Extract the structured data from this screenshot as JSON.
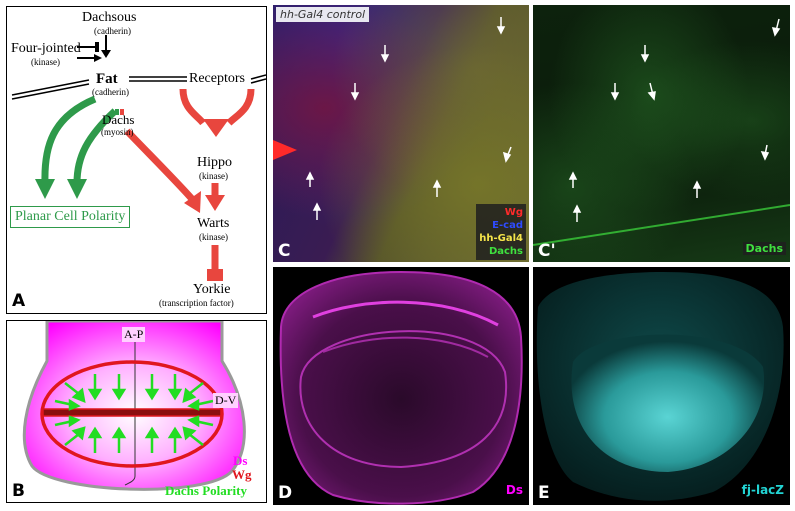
{
  "panelA": {
    "label": "A",
    "dachsous": "Dachsous",
    "dachsous_sub": "(cadherin)",
    "fourjointed": "Four-jointed",
    "fourjointed_sub": "(kinase)",
    "fat": "Fat",
    "fat_sub": "(cadherin)",
    "receptors": "Receptors",
    "dachs": "Dachs",
    "dachs_sub": "(myosin)",
    "hippo": "Hippo",
    "hippo_sub": "(kinase)",
    "warts": "Warts",
    "warts_sub": "(kinase)",
    "pcp": "Planar Cell Polarity",
    "yorkie": "Yorkie",
    "yorkie_sub": "(transcription factor)",
    "colors": {
      "green": "#2e9a4a",
      "red": "#e8463e"
    }
  },
  "panelB": {
    "label": "B",
    "ap": "A-P",
    "dv": "D-V",
    "ds": "Ds",
    "wg": "Wg",
    "dachs_polarity": "Dachs Polarity",
    "colors": {
      "magenta": "#ff00ff",
      "red": "#e0161e",
      "green": "#22dd22"
    }
  },
  "panelC": {
    "label": "C",
    "title": "hh-Gal4 control",
    "legend": [
      "Wg",
      "E-cad",
      "hh-Gal4",
      "Dachs"
    ],
    "legend_colors": [
      "#ff2a2a",
      "#2e4bff",
      "#f5e44a",
      "#3fe03f"
    ]
  },
  "panelC2": {
    "label": "C'",
    "channel": "Dachs"
  },
  "panelD": {
    "label": "D",
    "channel": "Ds"
  },
  "panelE": {
    "label": "E",
    "channel": "fj-lacZ"
  }
}
